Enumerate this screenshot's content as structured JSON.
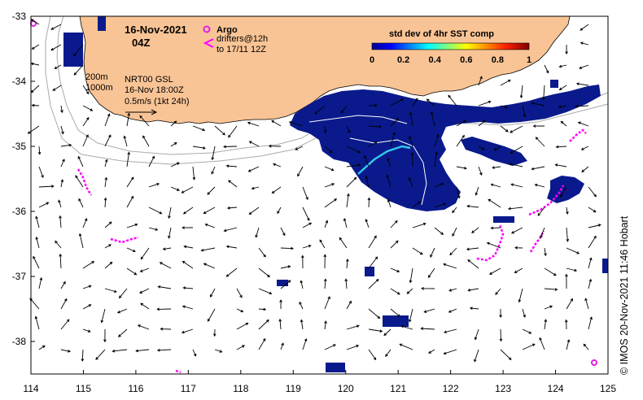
{
  "header": {
    "date": "16-Nov-2021",
    "time": "04Z"
  },
  "legend": {
    "argo_label": "Argo",
    "drifters_line1": "drifters@12h",
    "drifters_line2": "to 17/11 12Z",
    "argo_color": "#e020e0",
    "drifter_color": "#ff00ff"
  },
  "colorbar": {
    "title": "std dev of 4hr SST comp",
    "ticks": [
      "0",
      "0.2",
      "0.4",
      "0.6",
      "0.8",
      "1"
    ],
    "range": [
      0,
      1
    ]
  },
  "contours": {
    "label_200": "200m",
    "label_1000": "1000m"
  },
  "current_info": {
    "line1": "NRT00 GSL",
    "line2": "16-Nov 18:00Z",
    "scale_label": "0.5m/s (1kt 24h)"
  },
  "axes": {
    "x_ticks": [
      "114",
      "115",
      "116",
      "117",
      "118",
      "119",
      "120",
      "121",
      "122",
      "123",
      "124",
      "125"
    ],
    "y_ticks": [
      "-33",
      "-34",
      "-35",
      "-36",
      "-37",
      "-38"
    ],
    "lon_range": [
      114,
      125
    ],
    "lat_range": [
      -38.5,
      -33
    ]
  },
  "colors": {
    "land": "#f9c495",
    "sst_patch": "#0a1a8c",
    "sst_highlight": "#33c8e8"
  },
  "credit": "© IMOS 20-Nov-2021 11:46 Hobart"
}
